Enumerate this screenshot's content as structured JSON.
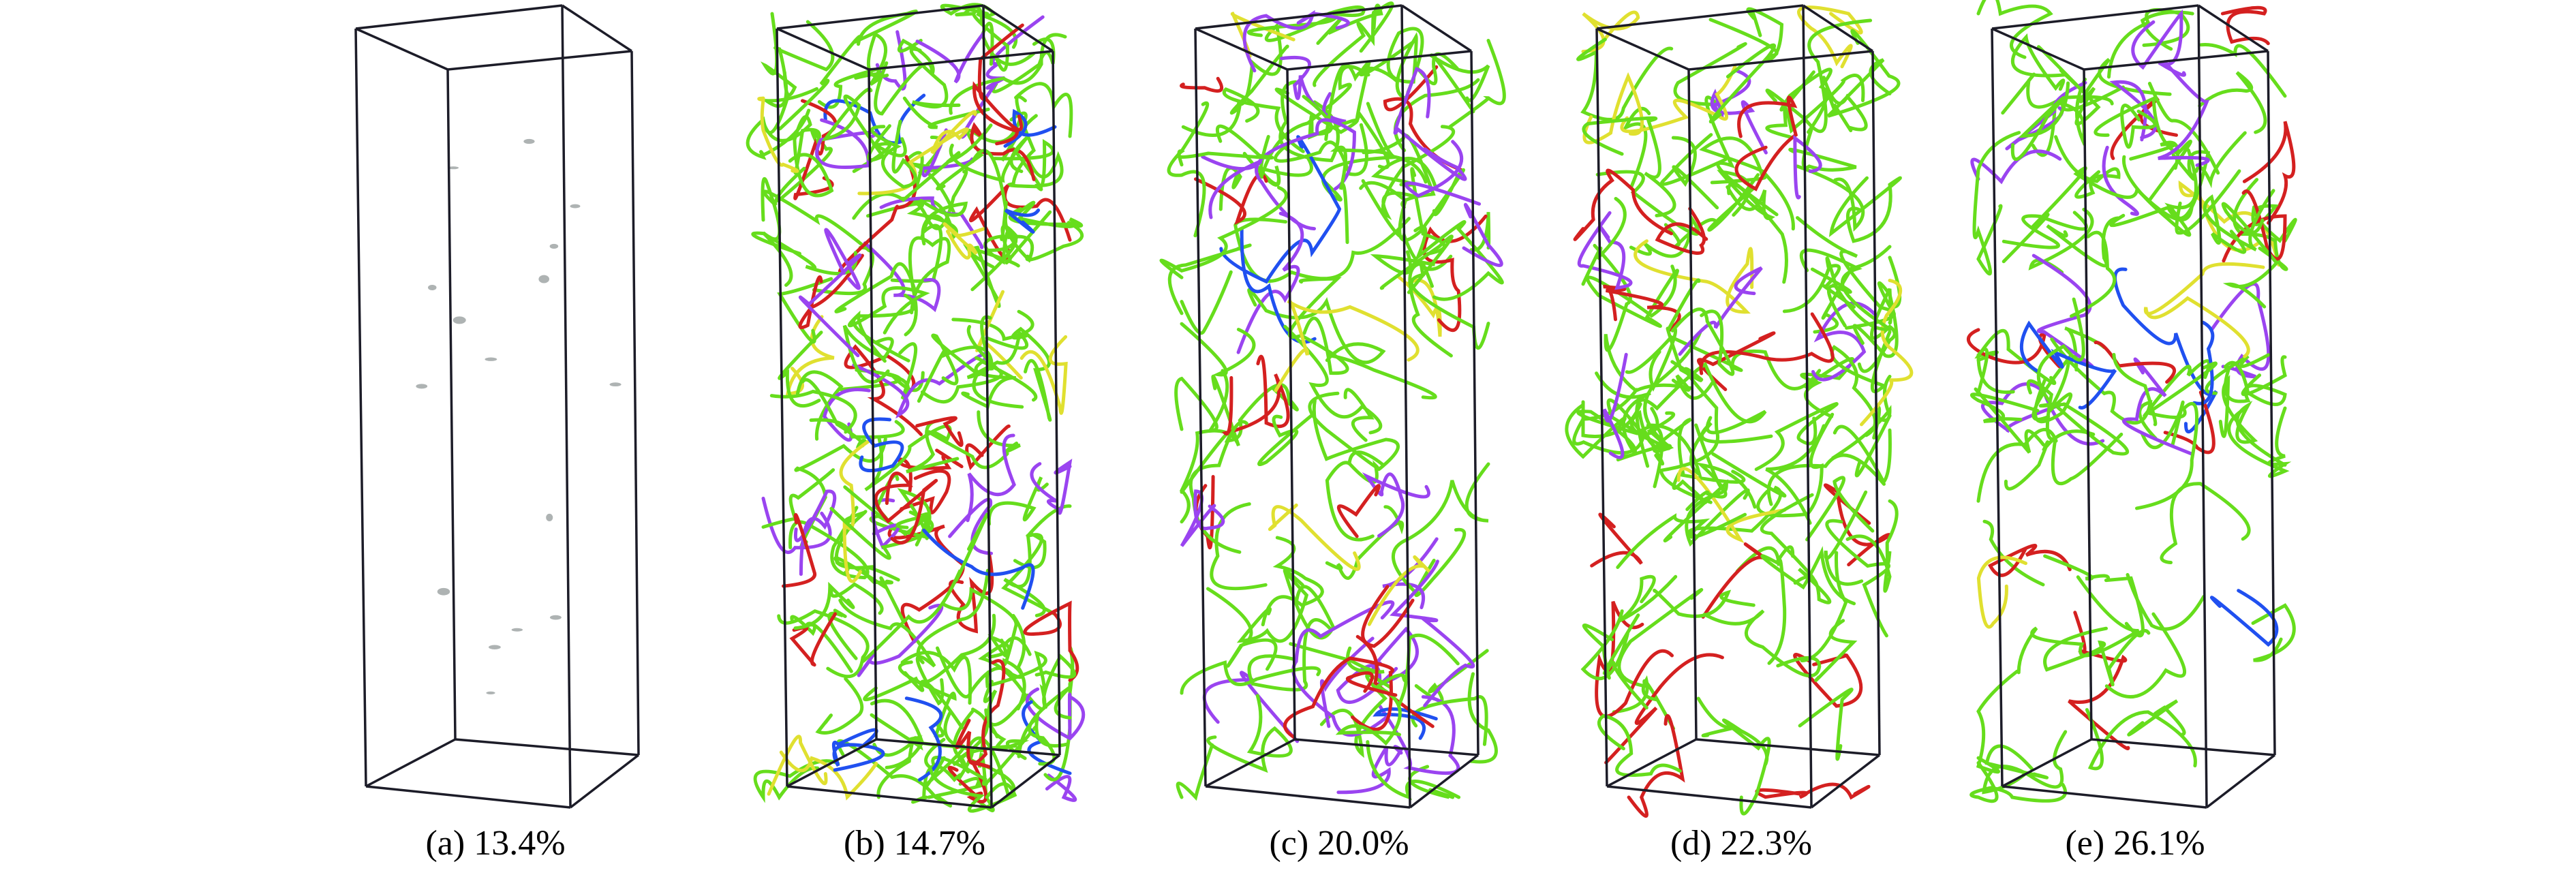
{
  "figure": {
    "panels": [
      {
        "label": "(a) 13.4%",
        "density": "specks"
      },
      {
        "label": "(b) 14.7%",
        "density": "dense"
      },
      {
        "label": "(c) 20.0%",
        "density": "medium"
      },
      {
        "label": "(d) 22.3%",
        "density": "medium"
      },
      {
        "label": "(e) 26.1%",
        "density": "clustered"
      }
    ],
    "line_colors": {
      "green": "#66dd1c",
      "red": "#d42020",
      "purple": "#9a44f0",
      "blue": "#2050f0",
      "yellow": "#e0e030",
      "speck": "#9aa0a0",
      "box": "#1c1c28"
    }
  }
}
